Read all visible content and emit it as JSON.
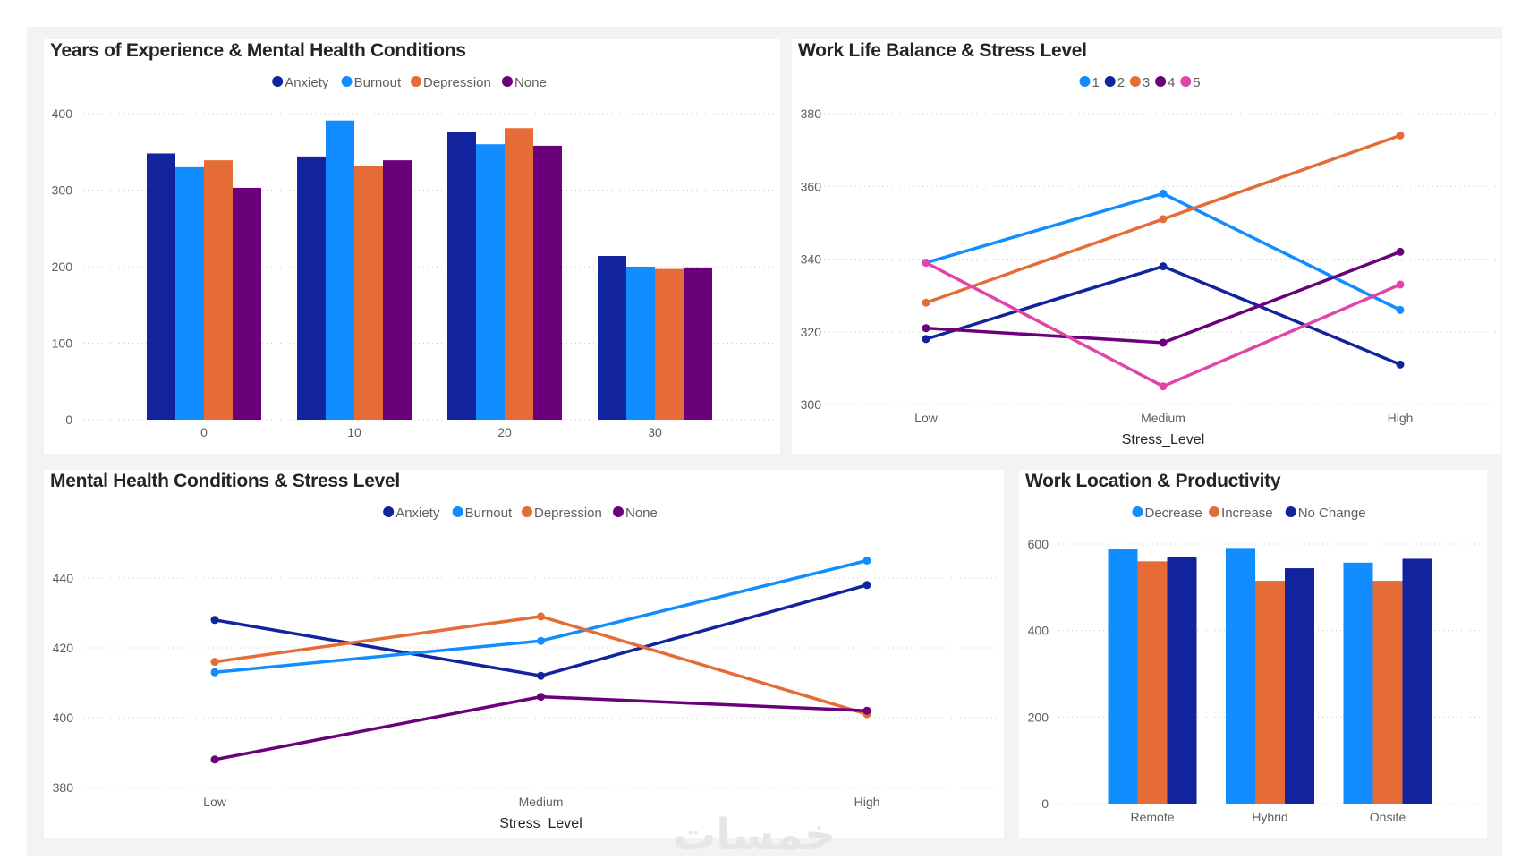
{
  "watermark": "خمسات",
  "colors": {
    "dark_blue": "#12239e",
    "light_blue": "#118dff",
    "orange": "#e66c37",
    "purple": "#6b007b",
    "pink": "#e044a7",
    "background": "#f3f3f3"
  },
  "chart_data": [
    {
      "type": "bar",
      "title": "Years of Experience & Mental Health Conditions",
      "xlabel": "",
      "ylabel": "",
      "categories": [
        "0",
        "10",
        "20",
        "30"
      ],
      "yticks": [
        0,
        100,
        200,
        300,
        400
      ],
      "ylim": [
        0,
        400
      ],
      "grid": true,
      "legend": "top-center",
      "series": [
        {
          "name": "Anxiety",
          "color": "#12239e",
          "values": [
            348,
            344,
            376,
            214
          ]
        },
        {
          "name": "Burnout",
          "color": "#118dff",
          "values": [
            330,
            391,
            360,
            200
          ]
        },
        {
          "name": "Depression",
          "color": "#e66c37",
          "values": [
            339,
            332,
            381,
            197
          ]
        },
        {
          "name": "None",
          "color": "#6b007b",
          "values": [
            303,
            339,
            358,
            199
          ]
        }
      ]
    },
    {
      "type": "line",
      "title": "Work Life Balance & Stress Level",
      "xlabel": "Stress_Level",
      "ylabel": "",
      "categories": [
        "Low",
        "Medium",
        "High"
      ],
      "yticks": [
        300,
        320,
        340,
        360,
        380
      ],
      "ylim": [
        300,
        380
      ],
      "grid": true,
      "legend": "top-center",
      "series": [
        {
          "name": "1",
          "color": "#118dff",
          "values": [
            339,
            358,
            326
          ]
        },
        {
          "name": "2",
          "color": "#12239e",
          "values": [
            318,
            338,
            311
          ]
        },
        {
          "name": "3",
          "color": "#e66c37",
          "values": [
            328,
            351,
            374
          ]
        },
        {
          "name": "4",
          "color": "#6b007b",
          "values": [
            321,
            317,
            342
          ]
        },
        {
          "name": "5",
          "color": "#e044a7",
          "values": [
            339,
            305,
            333
          ]
        }
      ]
    },
    {
      "type": "line",
      "title": "Mental Health Conditions & Stress Level",
      "xlabel": "Stress_Level",
      "ylabel": "",
      "categories": [
        "Low",
        "Medium",
        "High"
      ],
      "yticks": [
        380,
        400,
        420,
        440
      ],
      "ylim": [
        380,
        440
      ],
      "grid": true,
      "legend": "top-center",
      "series": [
        {
          "name": "Anxiety",
          "color": "#12239e",
          "values": [
            428,
            412,
            438
          ]
        },
        {
          "name": "Burnout",
          "color": "#118dff",
          "values": [
            413,
            422,
            445
          ]
        },
        {
          "name": "Depression",
          "color": "#e66c37",
          "values": [
            416,
            429,
            401
          ]
        },
        {
          "name": "None",
          "color": "#6b007b",
          "values": [
            388,
            406,
            402
          ]
        }
      ]
    },
    {
      "type": "bar",
      "title": "Work Location & Productivity",
      "xlabel": "",
      "ylabel": "",
      "categories": [
        "Remote",
        "Hybrid",
        "Onsite"
      ],
      "yticks": [
        0,
        200,
        400,
        600
      ],
      "ylim": [
        0,
        600
      ],
      "grid": true,
      "legend": "top-center",
      "series": [
        {
          "name": "Decrease",
          "color": "#118dff",
          "values": [
            589,
            591,
            557
          ]
        },
        {
          "name": "Increase",
          "color": "#e66c37",
          "values": [
            560,
            515,
            515
          ]
        },
        {
          "name": "No Change",
          "color": "#12239e",
          "values": [
            569,
            544,
            566
          ]
        }
      ]
    }
  ]
}
